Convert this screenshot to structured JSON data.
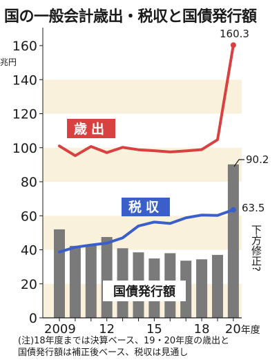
{
  "title": "国の一般会計歳出・税収と国債発行額",
  "unit_label": "兆円",
  "note_line1": "(注)18年度までは決算ベース、19・20年度の歳出と",
  "note_line2": "国債発行額は補正後ベース、税収は見通し",
  "colors": {
    "expenditure": "#d94040",
    "tax": "#3a5fc8",
    "bonds": "#7a7a7a",
    "band": "#faf1dc"
  },
  "chart_data": {
    "type": "bar",
    "title": "国の一般会計歳出・税収と国債発行額",
    "ylabel": "兆円",
    "ylim": [
      0,
      170
    ],
    "yticks": [
      0,
      20,
      40,
      60,
      80,
      100,
      120,
      140,
      160
    ],
    "x": [
      2009,
      2010,
      2011,
      2012,
      2013,
      2014,
      2015,
      2016,
      2017,
      2018,
      2019,
      2020
    ],
    "x_tick_labels": [
      {
        "x": 2009,
        "label": "2009"
      },
      {
        "x": 2012,
        "label": "12"
      },
      {
        "x": 2015,
        "label": "15"
      },
      {
        "x": 2018,
        "label": "18"
      },
      {
        "x": 2020,
        "label": "20年度"
      }
    ],
    "series": [
      {
        "name": "歳出",
        "type": "line",
        "values": [
          101.0,
          95.3,
          100.7,
          97.1,
          100.2,
          98.8,
          98.2,
          97.5,
          98.1,
          98.9,
          104.7,
          160.3
        ]
      },
      {
        "name": "税収",
        "type": "line",
        "values": [
          38.7,
          41.5,
          42.8,
          43.9,
          47.0,
          54.0,
          56.3,
          55.5,
          58.8,
          60.4,
          60.2,
          63.5
        ]
      },
      {
        "name": "国債発行額",
        "type": "bar",
        "values": [
          52.0,
          42.3,
          42.8,
          47.5,
          40.9,
          38.5,
          34.9,
          38.0,
          33.6,
          34.4,
          37.0,
          90.2
        ]
      }
    ],
    "annotations": [
      {
        "text": "160.3",
        "series": "歳出",
        "x": 2020
      },
      {
        "text": "90.2",
        "series": "国債発行額",
        "x": 2020
      },
      {
        "text": "63.5",
        "series": "税収",
        "x": 2020
      },
      {
        "text": "下方修正?",
        "series": "税収",
        "x": 2020
      }
    ],
    "grid": "alternating horizontal bands"
  }
}
